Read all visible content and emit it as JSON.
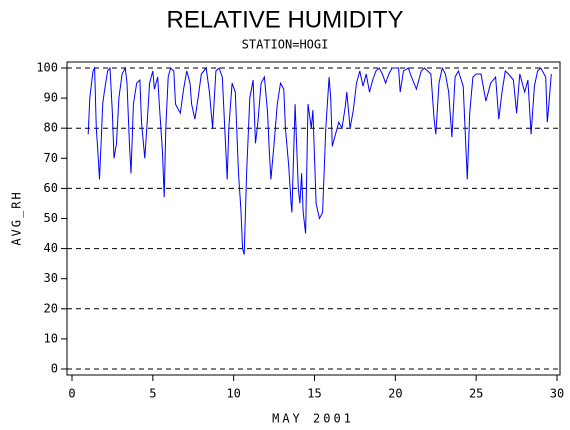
{
  "chart_data": {
    "type": "line",
    "title": "RELATIVE HUMIDITY",
    "subtitle": "STATION=HOGI",
    "x_label": "MAY 2001",
    "y_label": "AVG_RH",
    "xlim": [
      0,
      30
    ],
    "xticks": [
      0,
      5,
      10,
      15,
      20,
      25,
      30
    ],
    "ylim": [
      0,
      100
    ],
    "yticks": [
      0,
      10,
      20,
      30,
      40,
      50,
      60,
      70,
      80,
      90,
      100
    ],
    "grid_lines": [
      0,
      20,
      40,
      60,
      80,
      100
    ],
    "series": [
      {
        "color": "#0000ff",
        "x": [
          1.0,
          1.1,
          1.3,
          1.4,
          1.5,
          1.6,
          1.7,
          1.8,
          1.9,
          2.0,
          2.2,
          2.35,
          2.5,
          2.6,
          2.75,
          2.9,
          3.1,
          3.3,
          3.4,
          3.55,
          3.65,
          3.8,
          4.0,
          4.2,
          4.3,
          4.5,
          4.65,
          4.8,
          5.0,
          5.1,
          5.3,
          5.4,
          5.6,
          5.7,
          5.8,
          5.95,
          6.1,
          6.3,
          6.4,
          6.7,
          6.9,
          7.1,
          7.3,
          7.4,
          7.6,
          7.8,
          8.0,
          8.3,
          8.5,
          8.7,
          8.9,
          9.1,
          9.3,
          9.6,
          9.7,
          9.9,
          10.1,
          10.3,
          10.45,
          10.55,
          10.65,
          10.8,
          11.0,
          11.2,
          11.35,
          11.5,
          11.7,
          11.9,
          12.1,
          12.2,
          12.3,
          12.5,
          12.7,
          12.9,
          13.1,
          13.2,
          13.4,
          13.55,
          13.6,
          13.8,
          14.0,
          14.1,
          14.2,
          14.3,
          14.45,
          14.6,
          14.8,
          14.9,
          15.1,
          15.3,
          15.5,
          15.7,
          15.9,
          16.0,
          16.1,
          16.3,
          16.5,
          16.7,
          16.9,
          17.0,
          17.2,
          17.4,
          17.6,
          17.8,
          18.0,
          18.2,
          18.4,
          18.6,
          18.8,
          19.0,
          19.2,
          19.4,
          19.6,
          19.8,
          20.2,
          20.3,
          20.5,
          20.8,
          21.0,
          21.3,
          21.6,
          21.8,
          22.2,
          22.4,
          22.5,
          22.7,
          22.9,
          23.1,
          23.3,
          23.5,
          23.7,
          23.9,
          24.2,
          24.35,
          24.45,
          24.6,
          24.8,
          25.0,
          25.3,
          25.6,
          25.9,
          26.2,
          26.4,
          26.6,
          26.8,
          27.0,
          27.3,
          27.5,
          27.7,
          28.0,
          28.2,
          28.4,
          28.6,
          28.8,
          29.0,
          29.3,
          29.4,
          29.5,
          29.65
        ],
        "values": [
          78,
          90,
          99,
          100,
          80,
          72,
          63,
          75,
          88,
          92,
          99,
          100,
          85,
          70,
          75,
          90,
          98,
          100,
          95,
          75,
          65,
          88,
          95,
          96,
          82,
          70,
          82,
          95,
          99,
          93,
          97,
          88,
          72,
          57,
          80,
          97,
          100,
          99,
          88,
          85,
          93,
          99,
          95,
          88,
          83,
          90,
          98,
          100,
          92,
          80,
          99,
          100,
          97,
          63,
          80,
          95,
          92,
          65,
          53,
          40,
          38,
          65,
          90,
          96,
          75,
          82,
          95,
          97,
          85,
          73,
          63,
          75,
          88,
          95,
          93,
          80,
          68,
          55,
          52,
          88,
          60,
          55,
          65,
          52,
          45,
          88,
          80,
          86,
          55,
          50,
          52,
          80,
          97,
          90,
          74,
          78,
          82,
          80,
          87,
          92,
          80,
          86,
          95,
          99,
          94,
          98,
          92,
          96,
          99,
          100,
          98,
          95,
          98,
          100,
          100,
          92,
          99,
          100,
          97,
          93,
          99,
          100,
          98,
          83,
          78,
          95,
          100,
          98,
          92,
          77,
          97,
          99,
          94,
          75,
          63,
          85,
          97,
          98,
          98,
          89,
          95,
          97,
          83,
          92,
          99,
          98,
          96,
          85,
          98,
          92,
          96,
          78,
          94,
          99,
          100,
          97,
          82,
          88,
          98
        ]
      }
    ]
  }
}
